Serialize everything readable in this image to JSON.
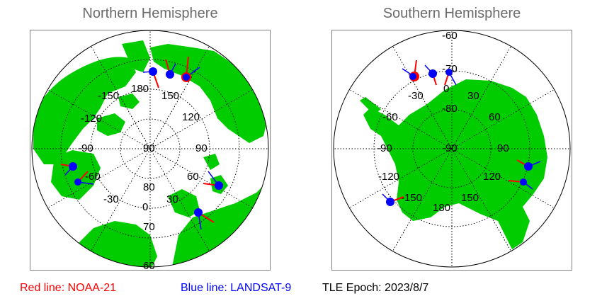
{
  "panels": {
    "north": {
      "title": "Northern Hemisphere",
      "lon_labels": [
        "180",
        "150",
        "120",
        "90",
        "60",
        "30",
        "0",
        "-30",
        "-60",
        "-90",
        "-120",
        "-150"
      ],
      "lat_labels": [
        "90",
        "80",
        "70",
        "60"
      ]
    },
    "south": {
      "title": "Southern Hemisphere",
      "lon_labels": [
        "0",
        "30",
        "60",
        "90",
        "120",
        "150",
        "180",
        "-150",
        "-120",
        "-90",
        "-60",
        "-30"
      ],
      "lat_labels": [
        "-90",
        "-80",
        "-70",
        "-60"
      ]
    }
  },
  "legend": {
    "red": "Red line: NOAA-21",
    "blue": "Blue line: LANDSAT-9",
    "epoch": "TLE Epoch: 2023/8/7"
  },
  "colors": {
    "land": "#00cc00",
    "ocean": "#ffffff",
    "grid": "#000000",
    "noaa_track": "#ff0000",
    "landsat_track": "#0000ff",
    "frame": "#808080",
    "title": "#6b6b6b"
  }
}
